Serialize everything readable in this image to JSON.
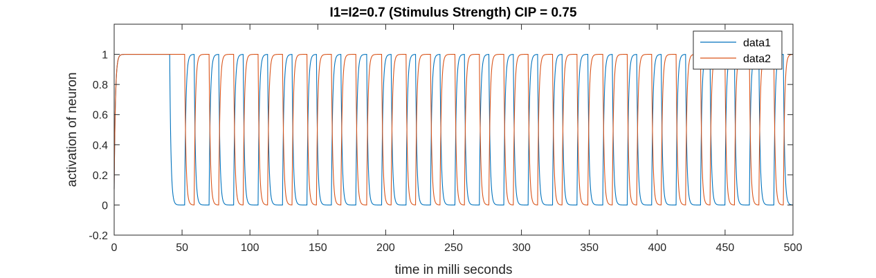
{
  "chart_data": {
    "type": "line",
    "title": "I1=I2=0.7 (Stimulus Strength) CIP = 0.75",
    "xlabel": "time in milli seconds",
    "ylabel": "activation of neuron",
    "xlim": [
      0,
      500
    ],
    "ylim": [
      -0.2,
      1.2
    ],
    "xticks": [
      0,
      50,
      100,
      150,
      200,
      250,
      300,
      350,
      400,
      450,
      500
    ],
    "yticks": [
      -0.2,
      0,
      0.2,
      0.4,
      0.6,
      0.8,
      1
    ],
    "grid": false,
    "legend_position": "top-right",
    "series": [
      {
        "name": "data1",
        "color": "#0072BD",
        "initial_rise": {
          "from": [
            0,
            0
          ],
          "to": [
            3,
            1
          ]
        },
        "description_points": {
          "sustained_high_until": 41,
          "drops_to_zero_at": [
            41,
            59,
            77,
            95,
            113,
            131,
            149,
            167,
            186,
            204,
            222,
            240,
            258,
            276,
            294,
            312,
            330,
            349,
            367,
            385,
            403,
            421,
            439,
            457,
            475,
            493
          ],
          "rises_to_one_at": [
            52,
            70,
            88,
            106,
            124,
            142,
            160,
            178,
            197,
            215,
            233,
            251,
            269,
            287,
            305,
            323,
            341,
            360,
            378,
            396,
            414,
            432,
            450,
            468,
            486
          ],
          "high_value": 1,
          "low_value": 0
        }
      },
      {
        "name": "data2",
        "color": "#D95319",
        "initial_rise": {
          "from": [
            0,
            0
          ],
          "to": [
            3,
            1
          ]
        },
        "description_points": {
          "drops_to_zero_at": [
            52,
            70,
            88,
            106,
            124,
            142,
            160,
            178,
            197,
            215,
            233,
            251,
            269,
            287,
            305,
            323,
            341,
            360,
            378,
            396,
            414,
            432,
            450,
            468,
            486
          ],
          "rises_to_one_at": [
            59,
            77,
            95,
            113,
            131,
            149,
            167,
            186,
            204,
            222,
            240,
            258,
            276,
            294,
            312,
            330,
            349,
            367,
            385,
            403,
            421,
            439,
            457,
            475,
            493
          ],
          "high_value": 1,
          "low_value": 0
        }
      }
    ]
  }
}
